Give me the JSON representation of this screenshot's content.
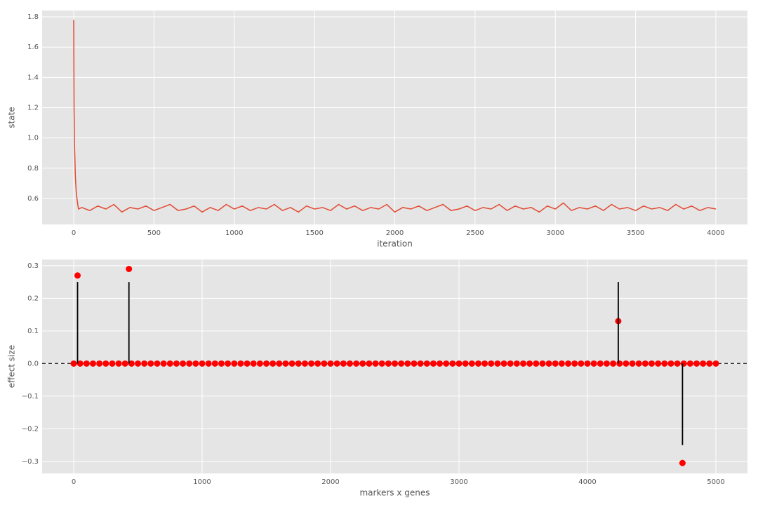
{
  "chart_data": [
    {
      "type": "line",
      "xlabel": "iteration",
      "ylabel": "state",
      "grid": true,
      "color": "#e24a33",
      "xlim": [
        -197,
        4197
      ],
      "ylim": [
        0.428,
        1.842
      ],
      "xticks": [
        0,
        500,
        1000,
        1500,
        2000,
        2500,
        3000,
        3500,
        4000
      ],
      "yticks": [
        0.6,
        0.8,
        {
          "value": 1,
          "label": "1.0"
        },
        1.2,
        1.4,
        1.6,
        1.8
      ],
      "x": [
        0,
        2,
        5,
        10,
        15,
        20,
        25,
        30,
        50,
        100,
        150,
        200,
        250,
        300,
        350,
        400,
        450,
        500,
        550,
        600,
        650,
        700,
        750,
        800,
        850,
        900,
        950,
        1000,
        1050,
        1100,
        1150,
        1200,
        1250,
        1300,
        1350,
        1400,
        1450,
        1500,
        1550,
        1600,
        1650,
        1700,
        1750,
        1800,
        1850,
        1900,
        1950,
        2000,
        2050,
        2100,
        2150,
        2200,
        2250,
        2300,
        2350,
        2400,
        2450,
        2500,
        2550,
        2600,
        2650,
        2700,
        2750,
        2800,
        2850,
        2900,
        2950,
        3000,
        3050,
        3100,
        3150,
        3200,
        3250,
        3300,
        3350,
        3400,
        3450,
        3500,
        3550,
        3600,
        3650,
        3700,
        3750,
        3800,
        3850,
        3900,
        3950,
        4000
      ],
      "values": [
        1.78,
        1.2,
        0.95,
        0.75,
        0.65,
        0.6,
        0.56,
        0.53,
        0.54,
        0.52,
        0.55,
        0.53,
        0.56,
        0.51,
        0.54,
        0.53,
        0.55,
        0.52,
        0.54,
        0.56,
        0.52,
        0.53,
        0.55,
        0.51,
        0.54,
        0.52,
        0.56,
        0.53,
        0.55,
        0.52,
        0.54,
        0.53,
        0.56,
        0.52,
        0.54,
        0.51,
        0.55,
        0.53,
        0.54,
        0.52,
        0.56,
        0.53,
        0.55,
        0.52,
        0.54,
        0.53,
        0.56,
        0.51,
        0.54,
        0.53,
        0.55,
        0.52,
        0.54,
        0.56,
        0.52,
        0.53,
        0.55,
        0.52,
        0.54,
        0.53,
        0.56,
        0.52,
        0.55,
        0.53,
        0.54,
        0.51,
        0.55,
        0.53,
        0.57,
        0.52,
        0.54,
        0.53,
        0.55,
        0.52,
        0.56,
        0.53,
        0.54,
        0.52,
        0.55,
        0.53,
        0.54,
        0.52,
        0.56,
        0.53,
        0.55,
        0.52,
        0.54,
        0.53
      ]
    },
    {
      "type": "scatter",
      "xlabel": "markers x genes",
      "ylabel": "effect size",
      "grid": true,
      "xlim": [
        -246,
        5246
      ],
      "ylim": [
        -0.337,
        0.319
      ],
      "xticks": [
        0,
        1000,
        2000,
        3000,
        4000,
        5000
      ],
      "yticks": [
        {
          "value": -0.3,
          "label": "−0.3"
        },
        {
          "value": -0.2,
          "label": "−0.2"
        },
        {
          "value": -0.1,
          "label": "−0.1"
        },
        {
          "value": 0,
          "label": "0.0"
        },
        0.1,
        0.2,
        0.3
      ],
      "hline": 0,
      "series": [
        {
          "mark": "dot",
          "color": "#ff0000",
          "x": [
            0,
            50,
            100,
            150,
            200,
            250,
            300,
            350,
            400,
            450,
            500,
            550,
            600,
            650,
            700,
            750,
            800,
            850,
            900,
            950,
            1000,
            1050,
            1100,
            1150,
            1200,
            1250,
            1300,
            1350,
            1400,
            1450,
            1500,
            1550,
            1600,
            1650,
            1700,
            1750,
            1800,
            1850,
            1900,
            1950,
            2000,
            2050,
            2100,
            2150,
            2200,
            2250,
            2300,
            2350,
            2400,
            2450,
            2500,
            2550,
            2600,
            2650,
            2700,
            2750,
            2800,
            2850,
            2900,
            2950,
            3000,
            3050,
            3100,
            3150,
            3200,
            3250,
            3300,
            3350,
            3400,
            3450,
            3500,
            3550,
            3600,
            3650,
            3700,
            3750,
            3800,
            3850,
            3900,
            3950,
            4000,
            4050,
            4100,
            4150,
            4200,
            4250,
            4300,
            4350,
            4400,
            4450,
            4500,
            4550,
            4600,
            4650,
            4700,
            4750,
            4800,
            4850,
            4900,
            4950,
            5000
          ],
          "values": [
            0,
            0,
            0,
            0,
            0,
            0,
            0,
            0,
            0,
            0,
            0,
            0,
            0,
            0,
            0,
            0,
            0,
            0,
            0,
            0,
            0,
            0,
            0,
            0,
            0,
            0,
            0,
            0,
            0,
            0,
            0,
            0,
            0,
            0,
            0,
            0,
            0,
            0,
            0,
            0,
            0,
            0,
            0,
            0,
            0,
            0,
            0,
            0,
            0,
            0,
            0,
            0,
            0,
            0,
            0,
            0,
            0,
            0,
            0,
            0,
            0,
            0,
            0,
            0,
            0,
            0,
            0,
            0,
            0,
            0,
            0,
            0,
            0,
            0,
            0,
            0,
            0,
            0,
            0,
            0,
            0,
            0,
            0,
            0,
            0,
            0,
            0,
            0,
            0,
            0,
            0,
            0,
            0,
            0,
            0,
            0,
            0,
            0,
            0,
            0,
            0
          ]
        },
        {
          "mark": "dot",
          "color": "#ff0000",
          "x": [
            30,
            430,
            4240,
            4740
          ],
          "values": [
            0.27,
            0.29,
            0.13,
            -0.305
          ]
        },
        {
          "mark": "stem",
          "color": "#000000",
          "x": [
            30,
            430,
            4240,
            4740
          ],
          "values": [
            0.25,
            0.25,
            0.25,
            -0.25
          ]
        }
      ]
    }
  ]
}
